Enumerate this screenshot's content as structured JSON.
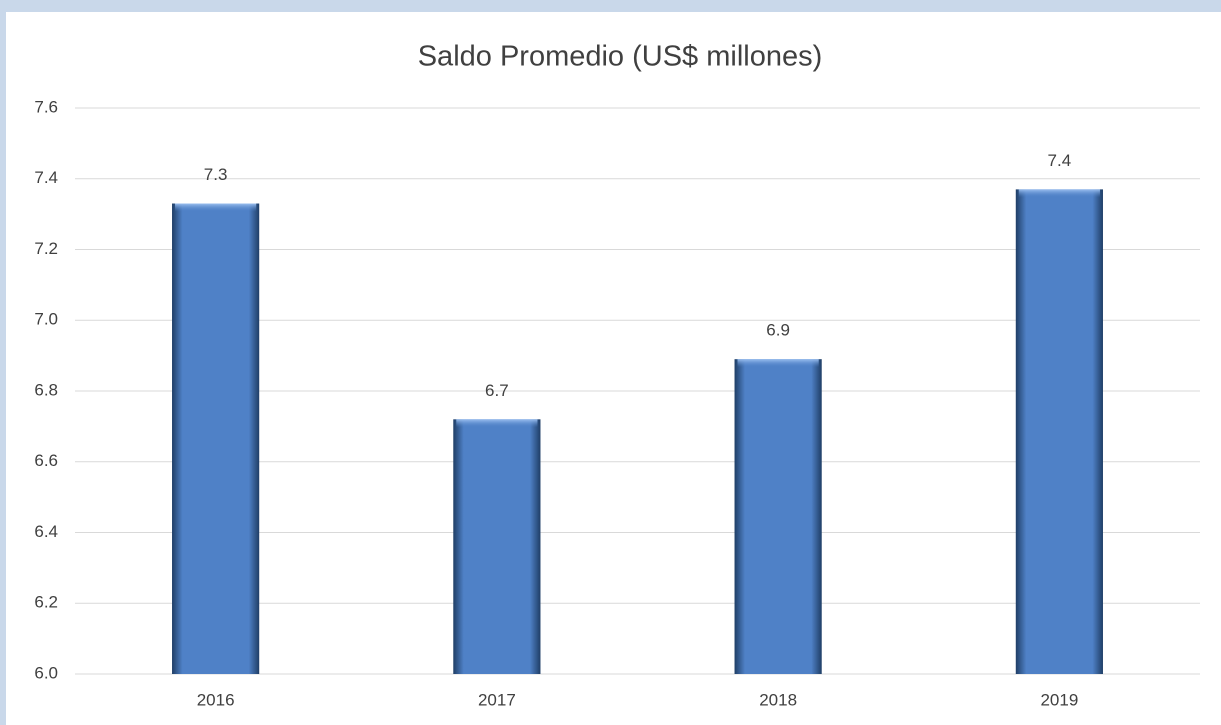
{
  "chart_data": {
    "type": "bar",
    "title": "Saldo Promedio (US$ millones)",
    "categories": [
      "2016",
      "2017",
      "2018",
      "2019"
    ],
    "values": [
      7.33,
      6.72,
      6.89,
      7.37
    ],
    "value_labels": [
      "7.3",
      "6.7",
      "6.9",
      "7.4"
    ],
    "color": "#4f81c7",
    "ylim": [
      6,
      7.6
    ],
    "yticks": [
      {
        "value": 6,
        "label": "6.0"
      },
      6.2,
      6.4,
      6.6,
      6.8,
      {
        "value": 7,
        "label": "7.0"
      },
      7.2,
      7.4,
      7.6
    ],
    "grid": true
  }
}
